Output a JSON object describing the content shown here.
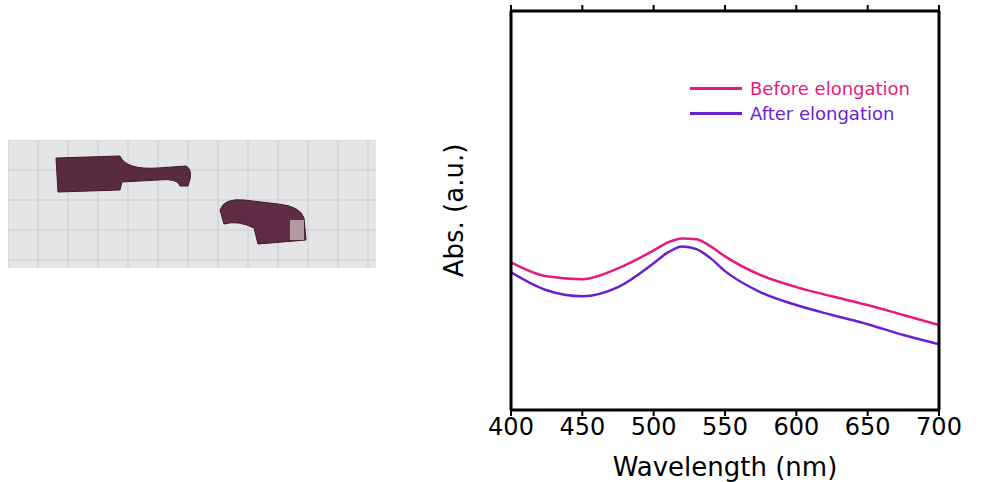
{
  "chart_data": {
    "type": "line",
    "x_label": "Wavelength (nm)",
    "y_label": "Abs. (a.u.)",
    "x": [
      400,
      425,
      450,
      475,
      500,
      510,
      520,
      530,
      540,
      550,
      575,
      600,
      625,
      650,
      675,
      700
    ],
    "series": [
      {
        "name": "Before elongation",
        "color": "#e8197c",
        "values": [
          0.37,
          0.335,
          0.328,
          0.355,
          0.4,
          0.42,
          0.43,
          0.428,
          0.41,
          0.385,
          0.338,
          0.308,
          0.285,
          0.263,
          0.238,
          0.213
        ]
      },
      {
        "name": "After elongation",
        "color": "#6a1fd1",
        "values": [
          0.345,
          0.3,
          0.285,
          0.308,
          0.368,
          0.395,
          0.41,
          0.403,
          0.38,
          0.348,
          0.295,
          0.263,
          0.238,
          0.215,
          0.188,
          0.165
        ]
      }
    ],
    "xlim": [
      400,
      700
    ],
    "xticks": [
      400,
      450,
      500,
      550,
      600,
      650,
      700
    ],
    "ylim": [
      0,
      1
    ],
    "tick_labels": "x",
    "legend": "upper right",
    "grid": false
  }
}
